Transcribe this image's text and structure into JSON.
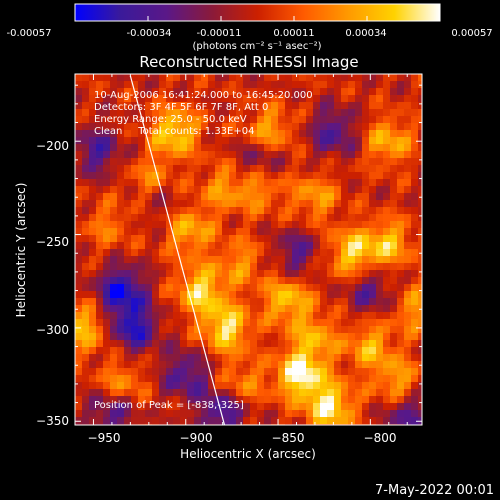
{
  "colorbar": {
    "ticks": [
      "-0.00057",
      "-0.00034",
      "-0.00011",
      "0.00011",
      "0.00034",
      "0.00057"
    ],
    "unit_label": "(photons cm⁻² s⁻¹ asec⁻²)",
    "range": [
      -0.00057,
      0.00057
    ],
    "colors": [
      "#0000ff",
      "#3a1a9a",
      "#5a1888",
      "#8a1a3a",
      "#cc2000",
      "#ff5a00",
      "#ff9a00",
      "#ffd200",
      "#ffffff"
    ]
  },
  "info": {
    "time": "10-Aug-2006 16:41:24.000 to 16:45:20.000",
    "detectors": "Detectors: 3F 4F 5F 6F 7F 8F, Att 0",
    "energy": "Energy Range: 25.0 - 50.0 keV",
    "clean": "Clean     Total counts: 1.33E+04",
    "peak": "Position of Peak = [-838,-325]"
  },
  "footer": {
    "date": "7-May-2022 00:01"
  },
  "chart_data": {
    "type": "heatmap",
    "title": "Reconstructed RHESSI Image",
    "xlabel": "Heliocentric X (arcsec)",
    "ylabel": "Heliocentric Y (arcsec)",
    "xlim": [
      -960,
      -772
    ],
    "ylim": [
      -352,
      -164
    ],
    "xticks": [
      -950,
      -900,
      -850,
      -800
    ],
    "yticks": [
      -200,
      -250,
      -300,
      -350
    ],
    "xtick_labels": [
      "−950",
      "−900",
      "−850",
      "−800"
    ],
    "ytick_labels": [
      "−200",
      "−250",
      "−300",
      "−350"
    ],
    "limb_line": [
      [
        -930,
        -165
      ],
      [
        -879,
        -352
      ]
    ],
    "peak": [
      -838,
      -325
    ],
    "hot_spots": [
      {
        "x": -906,
        "y": -195,
        "v": 0.8
      },
      {
        "x": -918,
        "y": -222,
        "v": 0.55
      },
      {
        "x": -898,
        "y": -248,
        "v": 0.6
      },
      {
        "x": -892,
        "y": -280,
        "v": 0.8
      },
      {
        "x": -878,
        "y": -300,
        "v": 0.85
      },
      {
        "x": -838,
        "y": -325,
        "v": 1.0
      },
      {
        "x": -822,
        "y": -342,
        "v": 0.9
      },
      {
        "x": -810,
        "y": -260,
        "v": 0.75
      },
      {
        "x": -790,
        "y": -255,
        "v": 0.65
      },
      {
        "x": -845,
        "y": -285,
        "v": 0.7
      },
      {
        "x": -955,
        "y": -300,
        "v": 0.65
      },
      {
        "x": -790,
        "y": -200,
        "v": 0.6
      },
      {
        "x": -855,
        "y": -195,
        "v": 0.6
      },
      {
        "x": -860,
        "y": -225,
        "v": 0.5
      },
      {
        "x": -880,
        "y": -225,
        "v": 0.45
      },
      {
        "x": -830,
        "y": -230,
        "v": 0.5
      },
      {
        "x": -830,
        "y": -305,
        "v": 0.55
      },
      {
        "x": -800,
        "y": -310,
        "v": 0.6
      },
      {
        "x": -785,
        "y": -330,
        "v": 0.6
      },
      {
        "x": -870,
        "y": -265,
        "v": 0.45
      },
      {
        "x": -935,
        "y": -330,
        "v": 0.5
      },
      {
        "x": -942,
        "y": -245,
        "v": 0.35
      },
      {
        "x": -775,
        "y": -290,
        "v": 0.5
      },
      {
        "x": -870,
        "y": -330,
        "v": 0.45
      }
    ],
    "cold_spots": [
      {
        "x": -935,
        "y": -280,
        "v": -0.9
      },
      {
        "x": -928,
        "y": -300,
        "v": -0.8
      },
      {
        "x": -948,
        "y": -205,
        "v": -0.6
      },
      {
        "x": -820,
        "y": -195,
        "v": -0.6
      },
      {
        "x": -860,
        "y": -210,
        "v": -0.5
      },
      {
        "x": -900,
        "y": -325,
        "v": -0.6
      },
      {
        "x": -800,
        "y": -280,
        "v": -0.5
      },
      {
        "x": -780,
        "y": -345,
        "v": -0.6
      },
      {
        "x": -880,
        "y": -345,
        "v": -0.7
      },
      {
        "x": -840,
        "y": -260,
        "v": -0.5
      },
      {
        "x": -915,
        "y": -230,
        "v": -0.4
      },
      {
        "x": -940,
        "y": -345,
        "v": -0.6
      }
    ]
  }
}
